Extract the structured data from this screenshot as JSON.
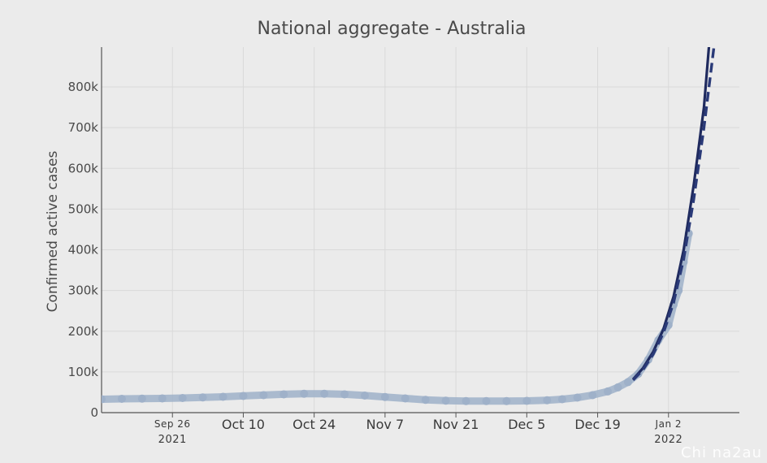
{
  "watermark": "Chi na2au",
  "chart_data": {
    "type": "line",
    "title": "National aggregate - Australia",
    "xlabel": "",
    "ylabel": "Confirmed active cases",
    "ylim": [
      0,
      800000
    ],
    "yticks": [
      {
        "value": 0,
        "label": "0"
      },
      {
        "value": 100000,
        "label": "100k"
      },
      {
        "value": 200000,
        "label": "200k"
      },
      {
        "value": 300000,
        "label": "300k"
      },
      {
        "value": 400000,
        "label": "400k"
      },
      {
        "value": 500000,
        "label": "500k"
      },
      {
        "value": 600000,
        "label": "600k"
      },
      {
        "value": 700000,
        "label": "700k"
      },
      {
        "value": 800000,
        "label": "800k"
      }
    ],
    "xrange": [
      "2021-09-12",
      "2022-01-16"
    ],
    "xticks": [
      {
        "date": "2021-09-26",
        "label": "Sep 26",
        "sublabel": "2021",
        "small": true
      },
      {
        "date": "2021-10-10",
        "label": "Oct 10"
      },
      {
        "date": "2021-10-24",
        "label": "Oct 24"
      },
      {
        "date": "2021-11-07",
        "label": "Nov 7"
      },
      {
        "date": "2021-11-21",
        "label": "Nov 21"
      },
      {
        "date": "2021-12-05",
        "label": "Dec 5"
      },
      {
        "date": "2021-12-19",
        "label": "Dec 19"
      },
      {
        "date": "2022-01-02",
        "label": "Jan 2",
        "sublabel": "2022",
        "small": true
      }
    ],
    "grid": true,
    "legend": "none",
    "series": [
      {
        "style": "markers",
        "color": "#9fb1c9",
        "points": [
          [
            "2021-09-12",
            33000
          ],
          [
            "2021-09-16",
            34000
          ],
          [
            "2021-09-20",
            34500
          ],
          [
            "2021-09-24",
            35000
          ],
          [
            "2021-09-28",
            36000
          ],
          [
            "2021-10-02",
            37500
          ],
          [
            "2021-10-06",
            39000
          ],
          [
            "2021-10-10",
            41000
          ],
          [
            "2021-10-14",
            43000
          ],
          [
            "2021-10-18",
            45000
          ],
          [
            "2021-10-22",
            46500
          ],
          [
            "2021-10-26",
            46500
          ],
          [
            "2021-10-30",
            45000
          ],
          [
            "2021-11-03",
            42000
          ],
          [
            "2021-11-07",
            38500
          ],
          [
            "2021-11-11",
            35000
          ],
          [
            "2021-11-15",
            31500
          ],
          [
            "2021-11-19",
            29500
          ],
          [
            "2021-11-23",
            28500
          ],
          [
            "2021-11-27",
            28500
          ],
          [
            "2021-12-01",
            28500
          ],
          [
            "2021-12-05",
            29000
          ],
          [
            "2021-12-09",
            30500
          ],
          [
            "2021-12-12",
            33000
          ],
          [
            "2021-12-15",
            37000
          ],
          [
            "2021-12-18",
            43000
          ],
          [
            "2021-12-21",
            52000
          ],
          [
            "2021-12-23",
            62000
          ],
          [
            "2021-12-25",
            75000
          ],
          [
            "2021-12-27",
            95000
          ],
          [
            "2021-12-29",
            130000
          ],
          [
            "2021-12-31",
            178000
          ],
          [
            "2022-01-02",
            215000
          ],
          [
            "2022-01-03",
            265000
          ],
          [
            "2022-01-04",
            300000
          ],
          [
            "2022-01-05",
            370000
          ],
          [
            "2022-01-06",
            440000
          ]
        ]
      },
      {
        "style": "solid",
        "color": "#1f2a5e",
        "points": [
          [
            "2021-12-26",
            82000
          ],
          [
            "2021-12-28",
            110000
          ],
          [
            "2021-12-30",
            150000
          ],
          [
            "2022-01-01",
            205000
          ],
          [
            "2022-01-03",
            285000
          ],
          [
            "2022-01-05",
            400000
          ],
          [
            "2022-01-07",
            560000
          ],
          [
            "2022-01-09",
            750000
          ],
          [
            "2022-01-10",
            900000
          ]
        ]
      },
      {
        "style": "dashed",
        "color": "#2a3a78",
        "points": [
          [
            "2021-12-26",
            80000
          ],
          [
            "2021-12-28",
            106000
          ],
          [
            "2021-12-30",
            144000
          ],
          [
            "2022-01-01",
            196000
          ],
          [
            "2022-01-03",
            270000
          ],
          [
            "2022-01-05",
            378000
          ],
          [
            "2022-01-07",
            525000
          ],
          [
            "2022-01-09",
            700000
          ],
          [
            "2022-01-11",
            900000
          ]
        ]
      }
    ]
  }
}
